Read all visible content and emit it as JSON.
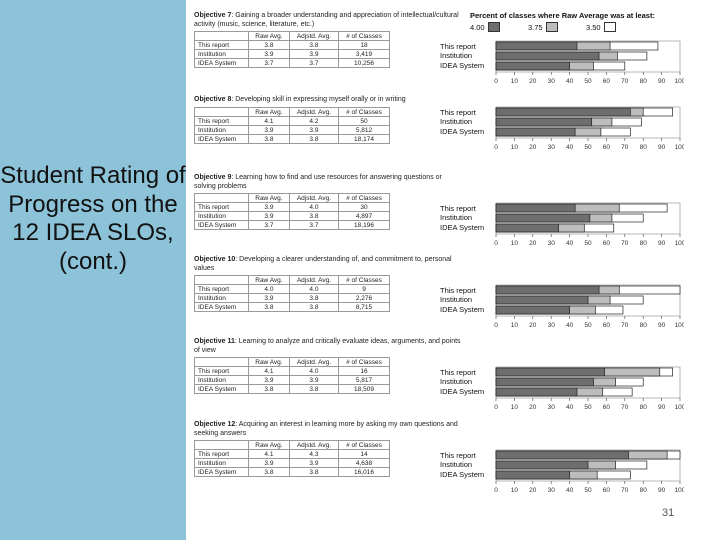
{
  "slide": {
    "title": "Student Rating of Progress on the 12 IDEA SLOs, (cont.)",
    "page_number": "31"
  },
  "legend": {
    "title": "Percent of classes where Raw Average was at least:",
    "items": [
      {
        "label": "4.00",
        "color": "#6e6e6e"
      },
      {
        "label": "3.75",
        "color": "#bdbdbd"
      },
      {
        "label": "3.50",
        "color": "#ffffff"
      }
    ]
  },
  "table_headers": [
    "",
    "Raw Avg.",
    "Adjstd. Avg.",
    "# of Classes"
  ],
  "row_labels": [
    "This report",
    "Institution",
    "IDEA System"
  ],
  "axis_ticks": [
    "0",
    "10",
    "20",
    "30",
    "40",
    "50",
    "60",
    "70",
    "80",
    "90",
    "100"
  ],
  "objectives": [
    {
      "num": "Objective 7",
      "text": ": Gaining a broader understanding and appreciation of intellectual/cultural activity (music, science, literature, etc.)",
      "rows": [
        {
          "label": "This report",
          "raw": "3.8",
          "adj": "3.8",
          "n": "18"
        },
        {
          "label": "Institution",
          "raw": "3.9",
          "adj": "3.9",
          "n": "3,419"
        },
        {
          "label": "IDEA System",
          "raw": "3.7",
          "adj": "3.7",
          "n": "10,256"
        }
      ],
      "bars": [
        [
          44,
          62,
          88
        ],
        [
          56,
          66,
          82
        ],
        [
          40,
          53,
          70
        ]
      ]
    },
    {
      "num": "Objective 8",
      "text": ": Developing skill in expressing myself orally or in writing",
      "rows": [
        {
          "label": "This report",
          "raw": "4.1",
          "adj": "4.2",
          "n": "50"
        },
        {
          "label": "Institution",
          "raw": "3.9",
          "adj": "3.9",
          "n": "5,812"
        },
        {
          "label": "IDEA System",
          "raw": "3.8",
          "adj": "3.8",
          "n": "18,174"
        }
      ],
      "bars": [
        [
          73,
          80,
          96
        ],
        [
          52,
          63,
          79
        ],
        [
          43,
          57,
          73
        ]
      ]
    },
    {
      "num": "Objective 9",
      "text": ": Learning how to find and use resources for answering questions or solving problems",
      "rows": [
        {
          "label": "This report",
          "raw": "3.9",
          "adj": "4.0",
          "n": "30"
        },
        {
          "label": "Institution",
          "raw": "3.9",
          "adj": "3.8",
          "n": "4,897"
        },
        {
          "label": "IDEA System",
          "raw": "3.7",
          "adj": "3.7",
          "n": "18,196"
        }
      ],
      "bars": [
        [
          43,
          67,
          93
        ],
        [
          51,
          63,
          80
        ],
        [
          34,
          48,
          64
        ]
      ]
    },
    {
      "num": "Objective 10",
      "text": ": Developing a clearer understanding of, and commitment to, personal values",
      "rows": [
        {
          "label": "This report",
          "raw": "4.0",
          "adj": "4.0",
          "n": "9"
        },
        {
          "label": "Institution",
          "raw": "3.9",
          "adj": "3.8",
          "n": "2,276"
        },
        {
          "label": "IDEA System",
          "raw": "3.8",
          "adj": "3.8",
          "n": "8,715"
        }
      ],
      "bars": [
        [
          56,
          67,
          100
        ],
        [
          50,
          62,
          80
        ],
        [
          40,
          54,
          69
        ]
      ]
    },
    {
      "num": "Objective 11",
      "text": ": Learning to analyze and critically evaluate ideas, arguments, and points of view",
      "rows": [
        {
          "label": "This report",
          "raw": "4.1",
          "adj": "4.0",
          "n": "16"
        },
        {
          "label": "Institution",
          "raw": "3.9",
          "adj": "3.9",
          "n": "5,817"
        },
        {
          "label": "IDEA System",
          "raw": "3.8",
          "adj": "3.8",
          "n": "18,509"
        }
      ],
      "bars": [
        [
          59,
          89,
          96
        ],
        [
          53,
          65,
          80
        ],
        [
          44,
          58,
          74
        ]
      ]
    },
    {
      "num": "Objective 12",
      "text": ": Acquiring an interest in learning more by asking my own questions and seeking answers",
      "rows": [
        {
          "label": "This report",
          "raw": "4.1",
          "adj": "4.3",
          "n": "14"
        },
        {
          "label": "Institution",
          "raw": "3.9",
          "adj": "3.9",
          "n": "4,638"
        },
        {
          "label": "IDEA System",
          "raw": "3.8",
          "adj": "3.8",
          "n": "16,016"
        }
      ],
      "bars": [
        [
          72,
          93,
          100
        ],
        [
          50,
          65,
          82
        ],
        [
          40,
          55,
          73
        ]
      ]
    }
  ]
}
